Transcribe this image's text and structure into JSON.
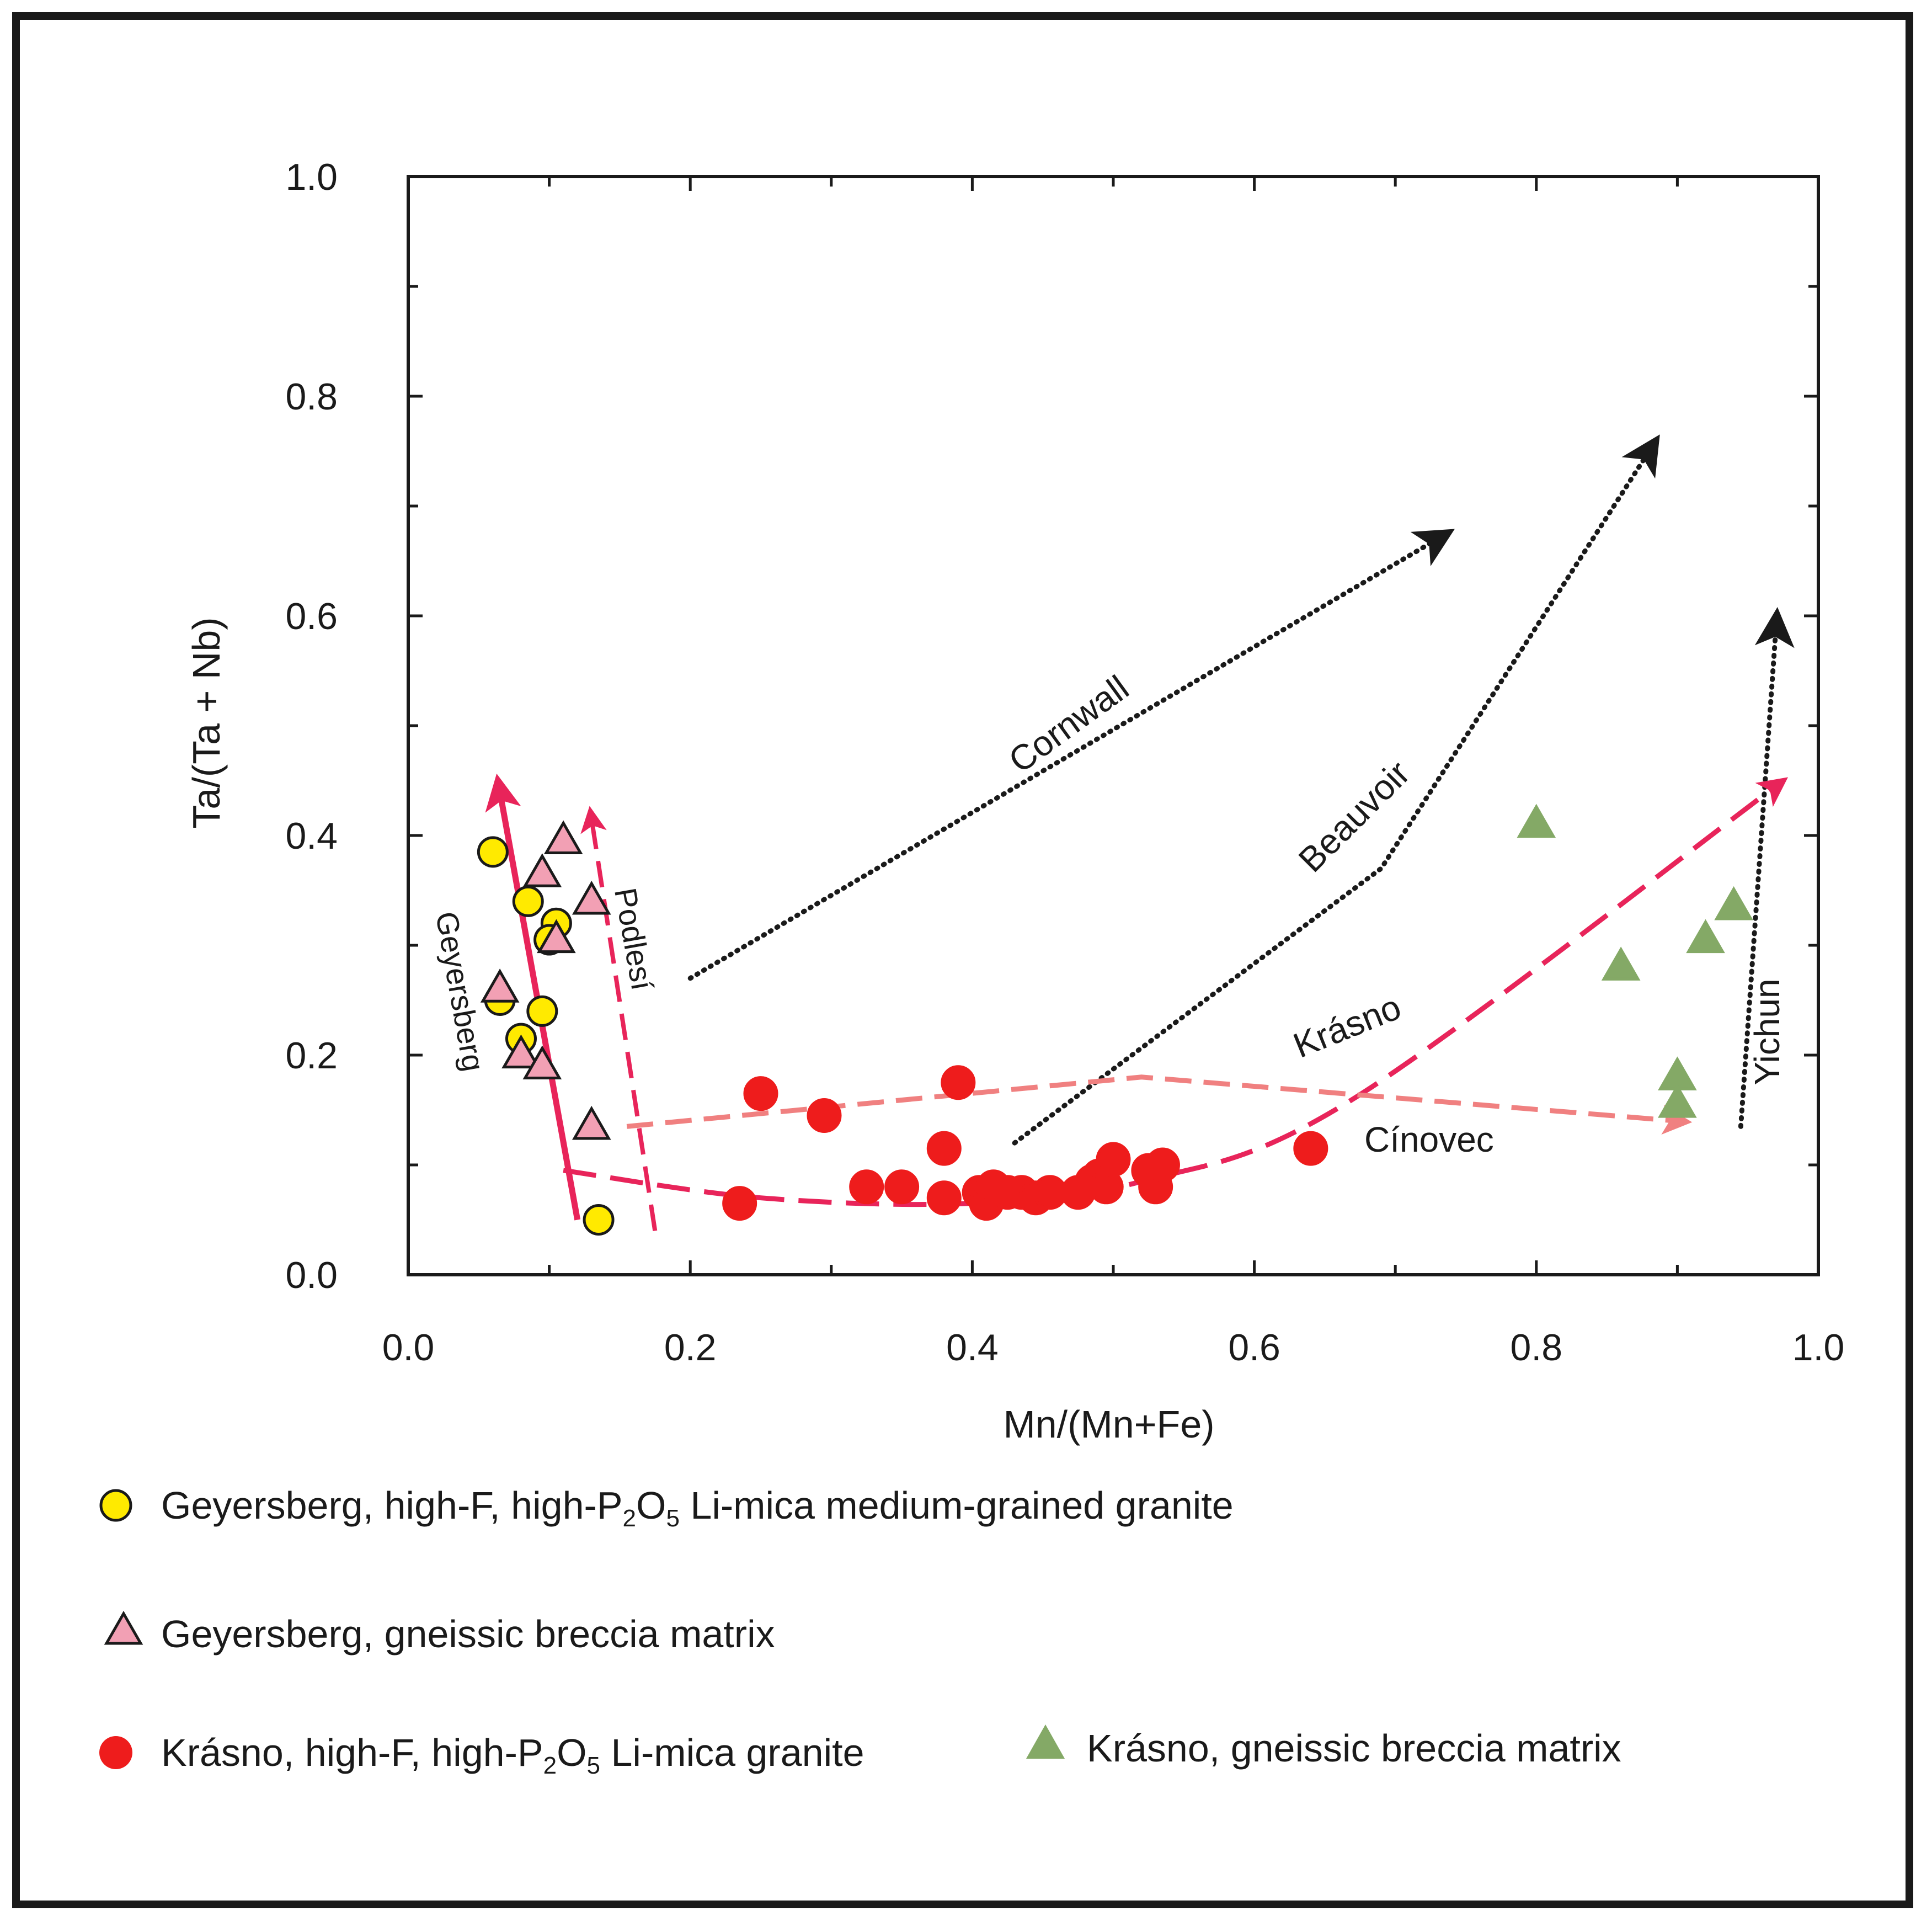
{
  "chart_data": {
    "type": "scatter",
    "title": "",
    "xlabel": "Mn/(Mn+Fe)",
    "ylabel": "Ta/(Ta + Nb)",
    "xlim": [
      0.0,
      1.0
    ],
    "ylim": [
      0.0,
      1.0
    ],
    "x_ticks": [
      "0.0",
      "0.2",
      "0.4",
      "0.6",
      "0.8",
      "1.0"
    ],
    "y_ticks": [
      "0.0",
      "0.2",
      "0.4",
      "0.6",
      "0.8",
      "1.0"
    ],
    "grid": false,
    "series": [
      {
        "name": "Geyersberg, high-F, high-P2O5 Li-mica medium-grained granite",
        "marker": "circle",
        "color": "#ffea00",
        "stroke": "#1a1a1a",
        "points": [
          [
            0.06,
            0.385
          ],
          [
            0.085,
            0.34
          ],
          [
            0.105,
            0.32
          ],
          [
            0.1,
            0.305
          ],
          [
            0.065,
            0.25
          ],
          [
            0.095,
            0.24
          ],
          [
            0.08,
            0.215
          ],
          [
            0.135,
            0.05
          ]
        ]
      },
      {
        "name": "Geyersberg, gneissic breccia matrix",
        "marker": "triangle",
        "color": "#f2a0b4",
        "stroke": "#1a1a1a",
        "points": [
          [
            0.11,
            0.395
          ],
          [
            0.095,
            0.365
          ],
          [
            0.13,
            0.34
          ],
          [
            0.105,
            0.305
          ],
          [
            0.065,
            0.26
          ],
          [
            0.08,
            0.2
          ],
          [
            0.095,
            0.19
          ],
          [
            0.13,
            0.135
          ]
        ]
      },
      {
        "name": "Krásno, high-F, high-P2O5 Li-mica granite",
        "marker": "circle",
        "color": "#ee1c1c",
        "stroke": "#ee1c1c",
        "points": [
          [
            0.235,
            0.065
          ],
          [
            0.25,
            0.165
          ],
          [
            0.295,
            0.145
          ],
          [
            0.325,
            0.08
          ],
          [
            0.35,
            0.08
          ],
          [
            0.38,
            0.115
          ],
          [
            0.39,
            0.175
          ],
          [
            0.38,
            0.07
          ],
          [
            0.405,
            0.075
          ],
          [
            0.41,
            0.065
          ],
          [
            0.415,
            0.08
          ],
          [
            0.425,
            0.075
          ],
          [
            0.435,
            0.075
          ],
          [
            0.445,
            0.07
          ],
          [
            0.455,
            0.075
          ],
          [
            0.475,
            0.075
          ],
          [
            0.485,
            0.085
          ],
          [
            0.49,
            0.09
          ],
          [
            0.495,
            0.08
          ],
          [
            0.5,
            0.105
          ],
          [
            0.525,
            0.095
          ],
          [
            0.53,
            0.08
          ],
          [
            0.535,
            0.1
          ],
          [
            0.64,
            0.115
          ]
        ]
      },
      {
        "name": "Krásno, gneissic breccia matrix",
        "marker": "triangle",
        "color": "#84a966",
        "stroke": "#84a966",
        "points": [
          [
            0.8,
            0.41
          ],
          [
            0.94,
            0.335
          ],
          [
            0.92,
            0.305
          ],
          [
            0.86,
            0.28
          ],
          [
            0.9,
            0.18
          ],
          [
            0.9,
            0.155
          ]
        ]
      }
    ],
    "trend_labels": {
      "cornwall": "Cornwall",
      "beauvoir": "Beauvoir",
      "krasno": "Krásno",
      "cinovec": "Cínovec",
      "yichun": "Yichun",
      "geyersberg": "Geyersberg",
      "podlesi": "Podlesí"
    },
    "trends": {
      "cornwall": [
        [
          0.2,
          0.27
        ],
        [
          0.73,
          0.67
        ]
      ],
      "beauvoir": [
        [
          0.43,
          0.12
        ],
        [
          0.69,
          0.37
        ],
        [
          0.88,
          0.75
        ]
      ],
      "yichun": [
        [
          0.945,
          0.135
        ],
        [
          0.97,
          0.59
        ]
      ],
      "geyersberg": [
        [
          0.12,
          0.05
        ],
        [
          0.065,
          0.44
        ]
      ],
      "podlesi": [
        [
          0.175,
          0.04
        ],
        [
          0.13,
          0.415
        ]
      ],
      "krasno": [
        [
          0.11,
          0.095
        ],
        [
          0.25,
          0.07
        ],
        [
          0.4,
          0.065
        ],
        [
          0.52,
          0.085
        ],
        [
          0.67,
          0.16
        ],
        [
          0.97,
          0.445
        ]
      ],
      "cinovec": [
        [
          0.155,
          0.135
        ],
        [
          0.52,
          0.18
        ],
        [
          0.9,
          0.14
        ]
      ]
    }
  },
  "legend": {
    "item1": {
      "pre": "Geyersberg, high-F, high-P",
      "sub1": "2",
      "mid": "O",
      "sub2": "5",
      "post": " Li-mica medium-grained granite"
    },
    "item2": {
      "text": "Geyersberg, gneissic breccia matrix"
    },
    "item3": {
      "pre": "Krásno, high-F, high-P",
      "sub1": "2",
      "mid": "O",
      "sub2": "5",
      "post": " Li-mica granite"
    },
    "item4": {
      "text": "Krásno, gneissic breccia matrix"
    }
  },
  "colors": {
    "axis": "#1a1a1a",
    "geyersberg_fill": "#ffea00",
    "breccia_pink": "#f2a0b4",
    "krasno_red": "#ee1c1c",
    "krasno_green": "#84a966",
    "trend_red": "#e8245a",
    "trend_salmon": "#f08080"
  }
}
